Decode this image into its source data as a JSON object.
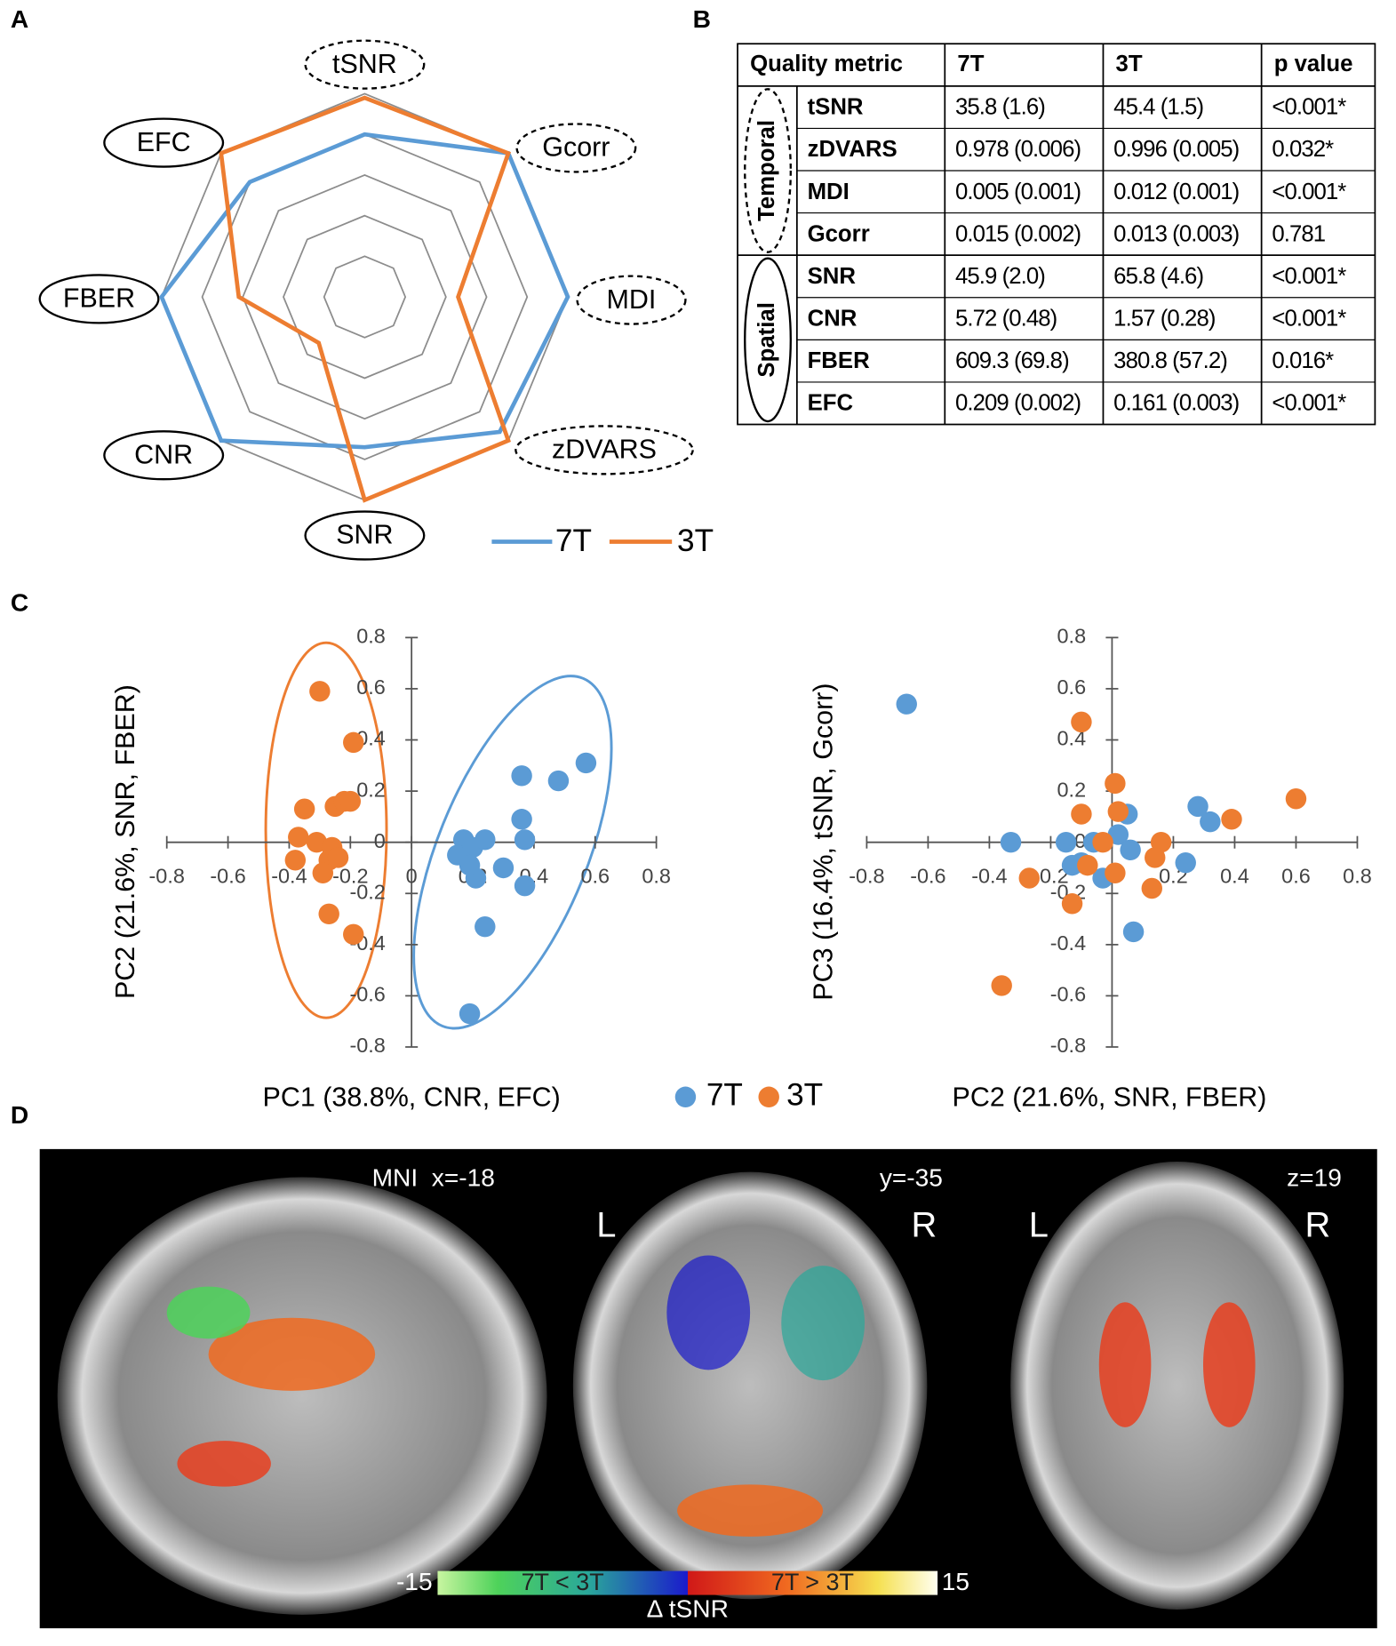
{
  "panel_labels": [
    "A",
    "B",
    "C",
    "D"
  ],
  "chart_data": [
    {
      "type": "radar",
      "categories": [
        "tSNR",
        "Gcorr",
        "MDI",
        "zDVARS",
        "SNR",
        "CNR",
        "FBER",
        "EFC"
      ],
      "rlim": [
        0,
        5
      ],
      "rticks": [
        1,
        2,
        3,
        4,
        5
      ],
      "series": [
        {
          "name": "7T",
          "color": "#5b9bd5",
          "values": [
            4,
            5,
            5,
            4.7,
            3.7,
            5,
            5,
            4
          ]
        },
        {
          "name": "3T",
          "color": "#ed7d31",
          "values": [
            4.9,
            5,
            2.3,
            5,
            5,
            1.6,
            3.1,
            5
          ]
        }
      ]
    },
    {
      "type": "scatter",
      "x_label": "PC1 (38.8%, CNR, EFC)",
      "y_label": "PC2 (21.6%, SNR, FBER)",
      "xlim": [
        -0.8,
        0.8
      ],
      "ylim": [
        -0.8,
        0.8
      ],
      "xticks": [
        -0.8,
        -0.6,
        -0.4,
        -0.2,
        0,
        0.2,
        0.4,
        0.6,
        0.8
      ],
      "yticks": [
        -0.8,
        -0.6,
        -0.4,
        -0.2,
        0,
        0.2,
        0.4,
        0.6,
        0.8
      ],
      "series": [
        {
          "name": "7T",
          "color": "#5b9bd5",
          "x": [
            0.57,
            0.48,
            0.36,
            0.36,
            0.37,
            0.17,
            0.15,
            0.2,
            0.24,
            0.21,
            0.3,
            0.37,
            0.24,
            0.19,
            0.19
          ],
          "y": [
            0.31,
            0.24,
            0.26,
            0.09,
            0.01,
            0.01,
            -0.05,
            -0.02,
            0.01,
            -0.14,
            -0.1,
            -0.17,
            -0.33,
            -0.67,
            -0.09
          ]
        },
        {
          "name": "3T",
          "color": "#ed7d31",
          "x": [
            -0.3,
            -0.19,
            -0.35,
            -0.25,
            -0.22,
            -0.2,
            -0.37,
            -0.31,
            -0.26,
            -0.38,
            -0.27,
            -0.24,
            -0.29,
            -0.27,
            -0.19
          ],
          "y": [
            0.59,
            0.39,
            0.13,
            0.14,
            0.16,
            0.16,
            0.02,
            0,
            -0.02,
            -0.07,
            -0.07,
            -0.06,
            -0.12,
            -0.28,
            -0.36
          ]
        }
      ]
    },
    {
      "type": "scatter",
      "x_label": "PC2 (21.6%, SNR, FBER)",
      "y_label": "PC3 (16.4%, tSNR, Gcorr)",
      "xlim": [
        -0.8,
        0.8
      ],
      "ylim": [
        -0.8,
        0.8
      ],
      "xticks": [
        -0.8,
        -0.6,
        -0.4,
        -0.2,
        0,
        0.2,
        0.4,
        0.6,
        0.8
      ],
      "yticks": [
        -0.8,
        -0.6,
        -0.4,
        -0.2,
        0,
        0.2,
        0.4,
        0.6,
        0.8
      ],
      "series": [
        {
          "color": "#5b9bd5",
          "x": [
            -0.67,
            -0.33,
            0.28,
            0.32,
            0.24,
            0.07,
            0.05,
            0.02,
            -0.03,
            -0.1,
            -0.15,
            0.06,
            -0.06,
            -0.13
          ],
          "y": [
            0.54,
            0,
            0.14,
            0.08,
            -0.08,
            -0.35,
            0.11,
            0.03,
            -0.14,
            -0.08,
            0,
            -0.03,
            0,
            -0.09
          ]
        },
        {
          "color": "#ed7d31",
          "x": [
            -0.1,
            0.01,
            0.6,
            0.39,
            0.02,
            -0.1,
            0.16,
            0.14,
            -0.03,
            -0.27,
            -0.13,
            0.13,
            -0.36,
            0.01,
            -0.08
          ],
          "y": [
            0.47,
            0.23,
            0.17,
            0.09,
            0.12,
            0.11,
            0,
            -0.06,
            0,
            -0.14,
            -0.24,
            -0.18,
            -0.56,
            -0.12,
            -0.09
          ]
        }
      ]
    }
  ],
  "table": {
    "header": [
      "Quality metric",
      "7T",
      "3T",
      "p value"
    ],
    "groups": [
      {
        "name": "Temporal",
        "rows": [
          [
            "tSNR",
            "35.8 (1.6)",
            "45.4 (1.5)",
            "<0.001*"
          ],
          [
            "zDVARS",
            "0.978 (0.006)",
            "0.996 (0.005)",
            "0.032*"
          ],
          [
            "MDI",
            "0.005 (0.001)",
            "0.012 (0.001)",
            "<0.001*"
          ],
          [
            "Gcorr",
            "0.015 (0.002)",
            "0.013 (0.003)",
            "0.781"
          ]
        ]
      },
      {
        "name": "Spatial",
        "rows": [
          [
            "SNR",
            "45.9 (2.0)",
            "65.8 (4.6)",
            "<0.001*"
          ],
          [
            "CNR",
            "5.72 (0.48)",
            "1.57 (0.28)",
            "<0.001*"
          ],
          [
            "FBER",
            "609.3 (69.8)",
            "380.8 (57.2)",
            "0.016*"
          ],
          [
            "EFC",
            "0.209 (0.002)",
            "0.161 (0.003)",
            "<0.001*"
          ]
        ]
      }
    ]
  },
  "brain": {
    "panels": [
      {
        "label": "MNI  x=-18"
      },
      {
        "label": "y=-35",
        "left": "L",
        "right": "R"
      },
      {
        "label": "z=19",
        "left": "L",
        "right": "R"
      }
    ],
    "colorbar": {
      "min": -15,
      "max": 15,
      "low_label": "7T < 3T",
      "high_label": "7T > 3T",
      "title": "Δ tSNR"
    }
  }
}
